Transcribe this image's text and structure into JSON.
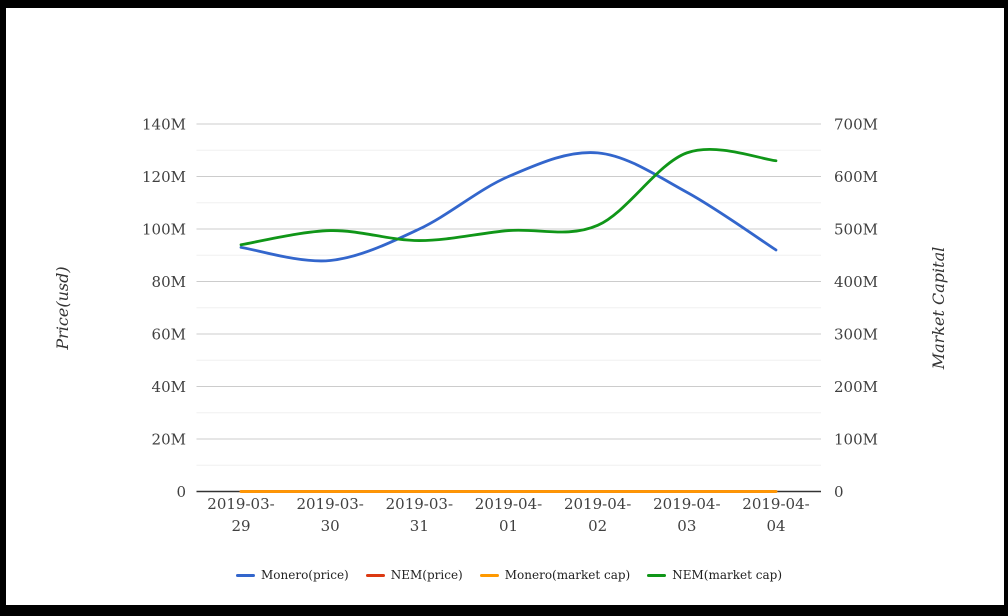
{
  "chart_data": {
    "type": "line",
    "categories": [
      "2019-03-29",
      "2019-03-30",
      "2019-03-31",
      "2019-04-01",
      "2019-04-02",
      "2019-04-03",
      "2019-04-04"
    ],
    "unit": "millions (M)",
    "series": [
      {
        "name": "Monero(price)",
        "axis": "left",
        "color": "#3366cc",
        "values": [
          93,
          88,
          100,
          120,
          129,
          114,
          92
        ]
      },
      {
        "name": "NEM(price)",
        "axis": "left",
        "color": "#dc3912",
        "values": [
          0,
          0,
          0,
          0,
          0,
          0,
          0
        ]
      },
      {
        "name": "Monero(market cap)",
        "axis": "left",
        "color": "#ff9900",
        "values": [
          0,
          0,
          0,
          0,
          0,
          0,
          0
        ]
      },
      {
        "name": "NEM(market cap)",
        "axis": "right",
        "color": "#109618",
        "values": [
          470,
          497,
          478,
          497,
          507,
          645,
          630
        ]
      }
    ],
    "axes": {
      "left": {
        "title": "Price(usd)",
        "ticks": [
          "0",
          "20M",
          "40M",
          "60M",
          "80M",
          "100M",
          "120M",
          "140M"
        ],
        "max_millions": 140
      },
      "right": {
        "title": "Market Capital",
        "ticks": [
          "0",
          "100M",
          "200M",
          "300M",
          "400M",
          "500M",
          "600M",
          "700M"
        ],
        "max_millions": 700
      }
    },
    "grid": true,
    "legend_position": "bottom"
  },
  "colors": {
    "major_grid": "#cccccc",
    "minor_grid": "#f0f0f0",
    "baseline": "#333333",
    "tick_text": "#404040",
    "frame": "#000000"
  }
}
